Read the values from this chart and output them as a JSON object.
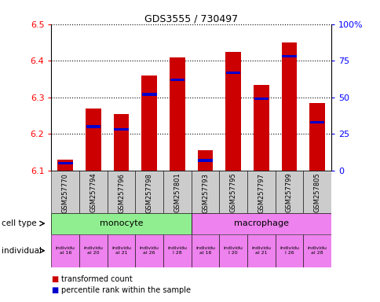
{
  "title": "GDS3555 / 730497",
  "samples": [
    "GSM257770",
    "GSM257794",
    "GSM257796",
    "GSM257798",
    "GSM257801",
    "GSM257793",
    "GSM257795",
    "GSM257797",
    "GSM257799",
    "GSM257805"
  ],
  "transformed_counts": [
    6.13,
    6.27,
    6.255,
    6.36,
    6.41,
    6.155,
    6.425,
    6.335,
    6.45,
    6.285
  ],
  "percentile_ranks": [
    5,
    30,
    28,
    52,
    62,
    7,
    67,
    49,
    78,
    33
  ],
  "ylim": [
    6.1,
    6.5
  ],
  "y2lim": [
    0,
    100
  ],
  "yticks": [
    6.1,
    6.2,
    6.3,
    6.4,
    6.5
  ],
  "y2ticks": [
    0,
    25,
    50,
    75,
    100
  ],
  "y2ticklabels": [
    "0",
    "25",
    "50",
    "75",
    "100%"
  ],
  "bar_color": "#cc0000",
  "percentile_color": "#0000cc",
  "cell_types": [
    {
      "label": "monocyte",
      "start": 0,
      "end": 5,
      "color": "#90ee90"
    },
    {
      "label": "macrophage",
      "start": 5,
      "end": 10,
      "color": "#ee82ee"
    }
  ],
  "ind_labels": [
    "individu\nal 16",
    "individu\nal 20",
    "individu\nal 21",
    "individu\nal 26",
    "individu\nl 28",
    "individu\nal 16",
    "individu\nl 20",
    "individu\nal 21",
    "individu\nl 26",
    "individu\nal 28"
  ],
  "legend_items": [
    {
      "label": "transformed count",
      "color": "#cc0000"
    },
    {
      "label": "percentile rank within the sample",
      "color": "#0000cc"
    }
  ],
  "bar_width": 0.55,
  "baseline": 6.1,
  "cell_type_row_label": "cell type",
  "individual_row_label": "individual",
  "bg_color": "#dddddd",
  "ind_color": "#ee82ee"
}
